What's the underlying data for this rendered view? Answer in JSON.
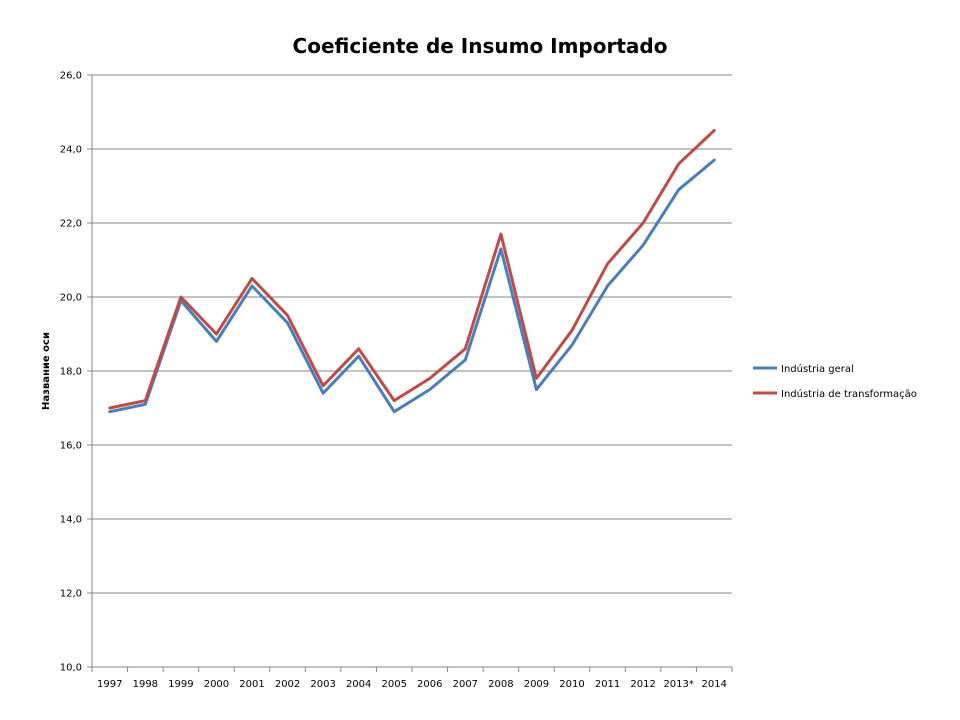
{
  "chart_data": {
    "type": "line",
    "title": "Coeficiente de Insumo Importado",
    "xlabel": "",
    "ylabel": "Название оси",
    "x": [
      "1997",
      "1998",
      "1999",
      "2000",
      "2001",
      "2002",
      "2003",
      "2004",
      "2005",
      "2006",
      "2007",
      "2008",
      "2009",
      "2010",
      "2011",
      "2012",
      "2013*",
      "2014"
    ],
    "ylim": [
      10,
      26
    ],
    "yticks": [
      10,
      12,
      14,
      16,
      18,
      20,
      22,
      24,
      26
    ],
    "ytick_labels": [
      "10,0",
      "12,0",
      "14,0",
      "16,0",
      "18,0",
      "20,0",
      "22,0",
      "24,0",
      "26,0"
    ],
    "grid": true,
    "legend_position": "right",
    "series": [
      {
        "name": "Indústria geral",
        "color": "#4a7ebb",
        "values": [
          16.9,
          17.1,
          19.9,
          18.8,
          20.3,
          19.3,
          17.4,
          18.4,
          16.9,
          17.5,
          18.3,
          21.3,
          17.5,
          18.7,
          20.3,
          21.4,
          22.9,
          23.7
        ]
      },
      {
        "name": "Indústria de transformação",
        "color": "#be4b48",
        "values": [
          17.0,
          17.2,
          20.0,
          19.0,
          20.5,
          19.5,
          17.6,
          18.6,
          17.2,
          17.8,
          18.6,
          21.7,
          17.8,
          19.1,
          20.9,
          22.0,
          23.6,
          24.5
        ]
      }
    ]
  }
}
